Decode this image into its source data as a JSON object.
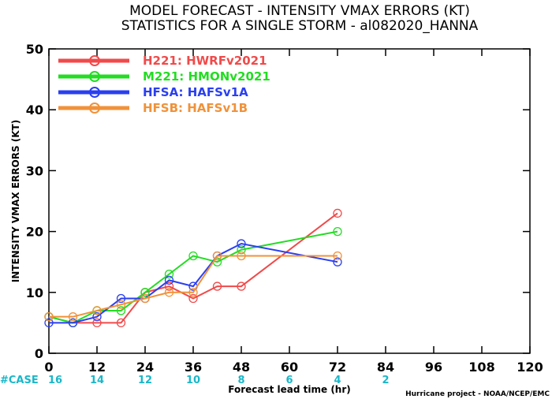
{
  "chart_data": {
    "type": "line",
    "title": "MODEL FORECAST - INTENSITY VMAX ERRORS (KT)",
    "subtitle": "STATISTICS FOR A SINGLE STORM - al082020_HANNA",
    "xlabel": "Forecast lead time (hr)",
    "ylabel": "INTENSITY VMAX ERRORS (KT)",
    "xlim": [
      0,
      120
    ],
    "ylim": [
      0,
      50
    ],
    "x_ticks": [
      0,
      12,
      24,
      36,
      48,
      60,
      72,
      84,
      96,
      108,
      120
    ],
    "y_ticks": [
      0,
      10,
      20,
      30,
      40,
      50
    ],
    "legend_position": "top-left",
    "grid": false,
    "series": [
      {
        "name": "H221: HWRFv2021",
        "color": "#f04a4a",
        "x": [
          0,
          6,
          12,
          18,
          24,
          30,
          36,
          42,
          48,
          72
        ],
        "y": [
          6,
          5,
          5,
          5,
          10,
          11,
          9,
          11,
          11,
          23
        ]
      },
      {
        "name": "M221: HMONv2021",
        "color": "#22dd22",
        "x": [
          0,
          6,
          12,
          18,
          24,
          30,
          36,
          42,
          48,
          72
        ],
        "y": [
          6,
          5,
          7,
          7,
          10,
          13,
          16,
          15,
          17,
          20
        ]
      },
      {
        "name": "HFSA: HAFSv1A",
        "color": "#2a3ff0",
        "x": [
          0,
          6,
          12,
          18,
          24,
          30,
          36,
          42,
          48,
          72
        ],
        "y": [
          5,
          5,
          6,
          9,
          9,
          12,
          11,
          16,
          18,
          15
        ]
      },
      {
        "name": "HFSB: HAFSv1B",
        "color": "#f0923a",
        "x": [
          0,
          6,
          12,
          18,
          24,
          30,
          36,
          42,
          48,
          72
        ],
        "y": [
          6,
          6,
          7,
          8,
          9,
          10,
          10,
          16,
          16,
          16
        ]
      }
    ],
    "case_counts": {
      "label": "#CASE",
      "x": [
        0,
        12,
        24,
        36,
        48,
        60,
        72,
        84
      ],
      "values": [
        "16",
        "14",
        "12",
        "10",
        "8",
        "6",
        "4",
        "2"
      ],
      "color": "#1ab7c9"
    },
    "credit": "Hurricane project - NOAA/NCEP/EMC"
  }
}
